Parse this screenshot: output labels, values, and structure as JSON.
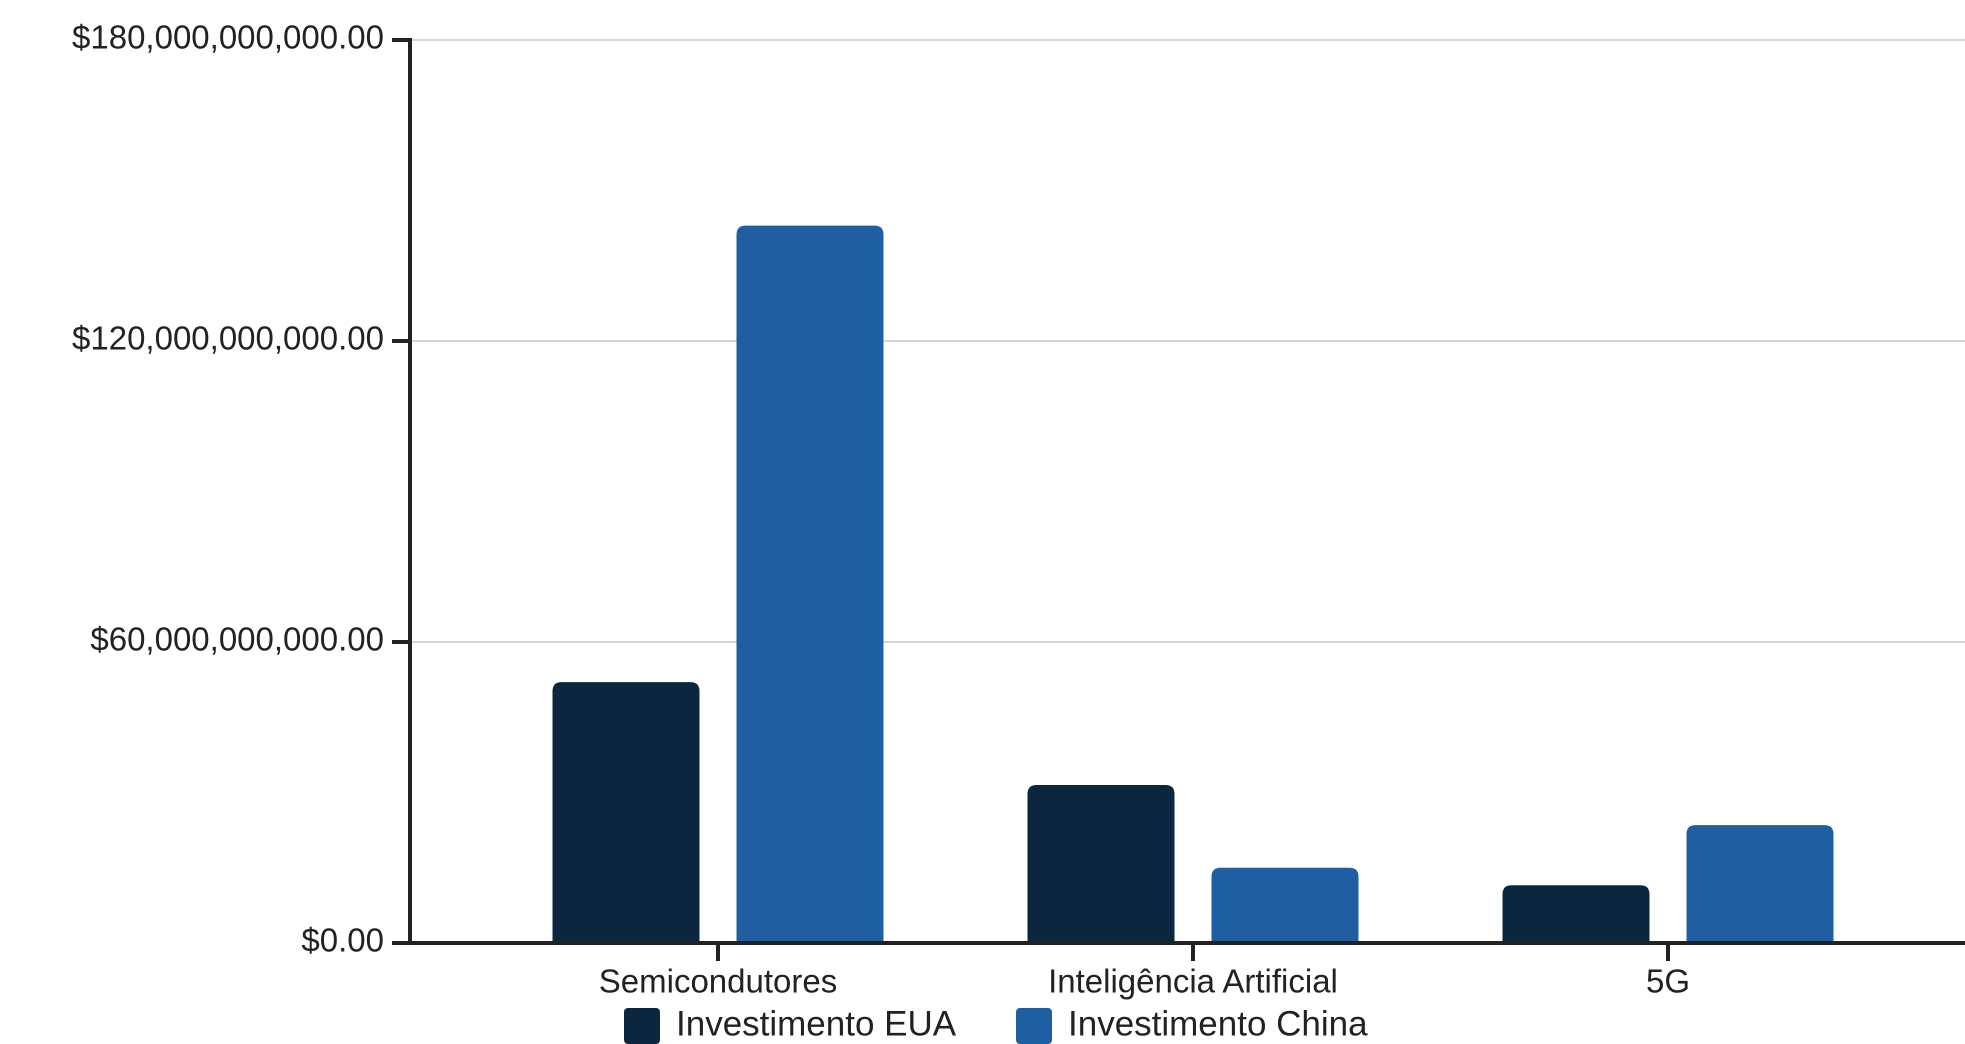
{
  "chart_data": {
    "type": "bar",
    "title": "",
    "xlabel": "",
    "ylabel": "",
    "categories": [
      "Semicondutores",
      "Inteligência Artificial",
      "5G"
    ],
    "series": [
      {
        "name": "Investimento EUA",
        "color": "#0d2640",
        "values": [
          52000000000,
          31500000000,
          11500000000
        ]
      },
      {
        "name": "Investimento China",
        "color": "#1f5fa1",
        "values": [
          143000000000,
          15000000000,
          23500000000
        ]
      }
    ],
    "ylim": [
      0,
      180000000000
    ],
    "yticks": [
      0,
      60000000000,
      120000000000,
      180000000000
    ],
    "ytick_labels": [
      "$0.00",
      "$60,000,000,000.00",
      "$120,000,000,000.00",
      "$180,000,000,000.00"
    ],
    "grid": true,
    "legend_position": "bottom"
  }
}
